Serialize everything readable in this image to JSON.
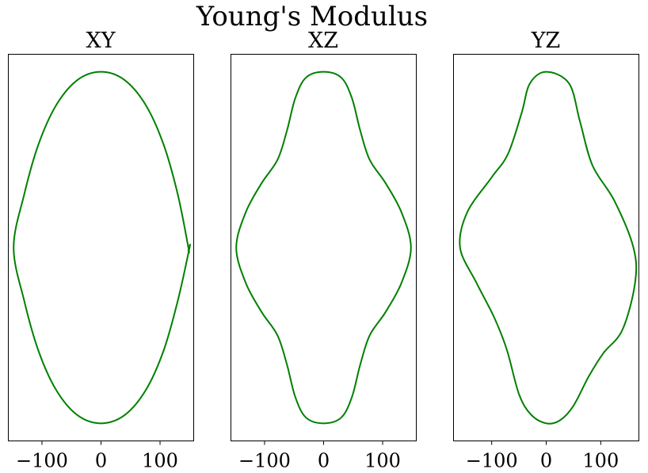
{
  "figure": {
    "title": "Young's Modulus"
  },
  "chart_data": [
    {
      "type": "line",
      "title": "XY",
      "line_color": "#008000",
      "xlim": [
        -157,
        157
      ],
      "ylim": [
        -330,
        330
      ],
      "xticks": [
        -100,
        0,
        100
      ],
      "xtick_labels": [
        "−100",
        "0",
        "100"
      ],
      "yticks_shown": false,
      "series": [
        {
          "points": [
            [
              0,
              300
            ],
            [
              40,
              286
            ],
            [
              76,
              243
            ],
            [
              106,
              176
            ],
            [
              130,
              91
            ],
            [
              148,
              0
            ],
            [
              148,
              -5
            ],
            [
              150,
              0
            ],
            [
              130,
              -91
            ],
            [
              106,
              -176
            ],
            [
              76,
              -243
            ],
            [
              40,
              -286
            ],
            [
              0,
              -300
            ],
            [
              -40,
              -286
            ],
            [
              -76,
              -243
            ],
            [
              -106,
              -176
            ],
            [
              -130,
              -91
            ],
            [
              -148,
              0
            ],
            [
              -130,
              91
            ],
            [
              -106,
              176
            ],
            [
              -76,
              243
            ],
            [
              -40,
              286
            ],
            [
              0,
              300
            ]
          ]
        }
      ]
    },
    {
      "type": "line",
      "title": "XZ",
      "line_color": "#008000",
      "xlim": [
        -157,
        157
      ],
      "ylim": [
        -330,
        330
      ],
      "xticks": [
        -100,
        0,
        100
      ],
      "xtick_labels": [
        "−100",
        "0",
        "100"
      ],
      "yticks_shown": false,
      "series": [
        {
          "points": [
            [
              0,
              300
            ],
            [
              30,
              290
            ],
            [
              48,
              255
            ],
            [
              62,
              200
            ],
            [
              78,
              150
            ],
            [
              105,
              110
            ],
            [
              132,
              60
            ],
            [
              148,
              0
            ],
            [
              132,
              -60
            ],
            [
              105,
              -110
            ],
            [
              78,
              -150
            ],
            [
              62,
              -200
            ],
            [
              48,
              -255
            ],
            [
              30,
              -290
            ],
            [
              0,
              -300
            ],
            [
              -30,
              -290
            ],
            [
              -48,
              -255
            ],
            [
              -62,
              -200
            ],
            [
              -78,
              -150
            ],
            [
              -105,
              -110
            ],
            [
              -132,
              -60
            ],
            [
              -148,
              0
            ],
            [
              -132,
              60
            ],
            [
              -105,
              110
            ],
            [
              -78,
              150
            ],
            [
              -62,
              200
            ],
            [
              -48,
              255
            ],
            [
              -30,
              290
            ],
            [
              0,
              300
            ]
          ]
        }
      ]
    },
    {
      "type": "line",
      "title": "YZ",
      "line_color": "#008000",
      "xlim": [
        -170,
        170
      ],
      "ylim": [
        -330,
        330
      ],
      "xticks": [
        -100,
        0,
        100
      ],
      "xtick_labels": [
        "−100",
        "0",
        "100"
      ],
      "yticks_shown": false,
      "series": [
        {
          "points": [
            [
              0,
              300
            ],
            [
              42,
              280
            ],
            [
              62,
              215
            ],
            [
              85,
              140
            ],
            [
              125,
              80
            ],
            [
              160,
              0
            ],
            [
              163,
              -60
            ],
            [
              140,
              -140
            ],
            [
              105,
              -180
            ],
            [
              78,
              -220
            ],
            [
              50,
              -270
            ],
            [
              25,
              -295
            ],
            [
              0,
              -300
            ],
            [
              -28,
              -285
            ],
            [
              -50,
              -250
            ],
            [
              -72,
              -175
            ],
            [
              -95,
              -120
            ],
            [
              -128,
              -60
            ],
            [
              -158,
              0
            ],
            [
              -145,
              60
            ],
            [
              -100,
              120
            ],
            [
              -70,
              160
            ],
            [
              -45,
              230
            ],
            [
              -30,
              280
            ],
            [
              0,
              300
            ]
          ]
        }
      ]
    }
  ]
}
